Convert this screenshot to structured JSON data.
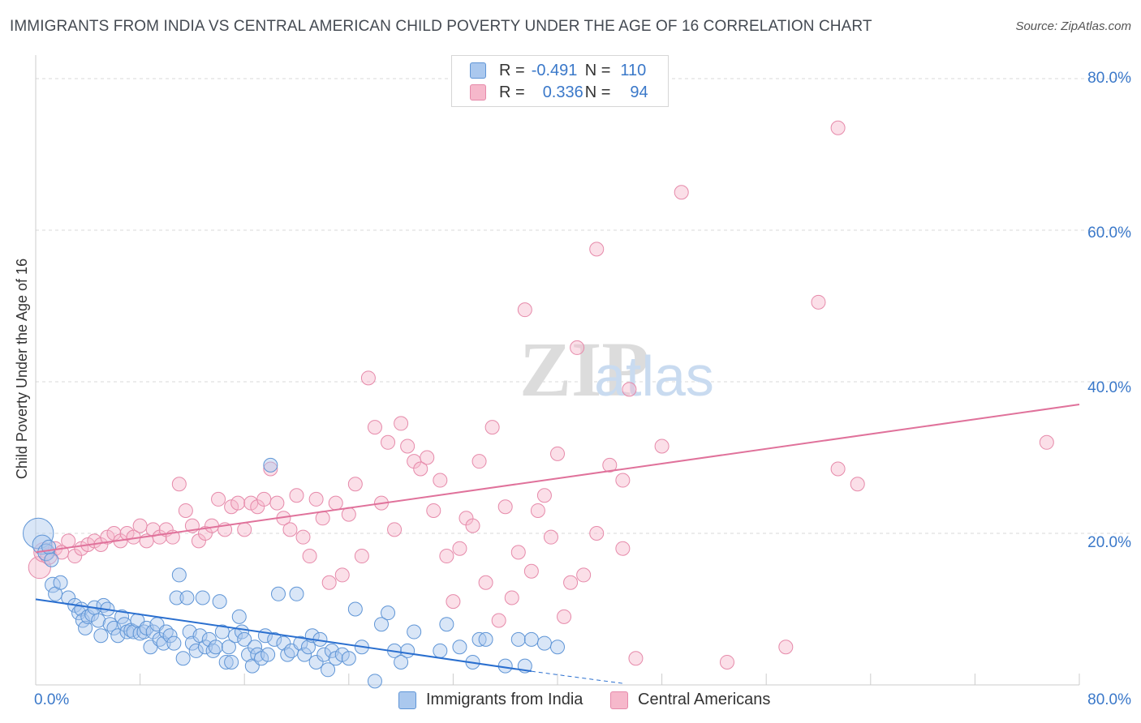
{
  "header": {
    "title": "IMMIGRANTS FROM INDIA VS CENTRAL AMERICAN CHILD POVERTY UNDER THE AGE OF 16 CORRELATION CHART",
    "source": "Source: ZipAtlas.com"
  },
  "legend": {
    "r_label": "R =",
    "n_label": "N =",
    "rows": [
      {
        "r": "-0.491",
        "n": "110"
      },
      {
        "r": "0.336",
        "n": "94"
      }
    ]
  },
  "bottom_legend": [
    "Immigrants from India",
    "Central Americans"
  ],
  "colors": {
    "india_fill": "#aac8ee",
    "india_stroke": "#5f95d6",
    "india_line": "#2a6fcf",
    "ca_fill": "#f6b8cb",
    "ca_stroke": "#e68aaa",
    "ca_line": "#e0729b",
    "grid": "#d9d9d9",
    "tick_text": "#3a78c9"
  },
  "chart_data": {
    "type": "scatter",
    "xlabel": "",
    "ylabel": "Child Poverty Under the Age of 16",
    "xlim": [
      0,
      80
    ],
    "ylim": [
      0,
      80
    ],
    "x_tick_labels": [
      "0.0%",
      "80.0%"
    ],
    "y_tick_labels": [
      "20.0%",
      "40.0%",
      "60.0%",
      "80.0%"
    ],
    "y_ticks": [
      20,
      40,
      60,
      80
    ],
    "grid": true,
    "watermark": "ZIPatlas",
    "series": [
      {
        "name": "Immigrants from India",
        "r": -0.491,
        "n": 110,
        "trend": {
          "x": [
            0,
            38
          ],
          "y": [
            11.3,
            1.8
          ],
          "dashed_to": [
            45,
            0.2
          ]
        },
        "points": [
          [
            0.2,
            20.0,
            2.2
          ],
          [
            0.5,
            18.5,
            1.4
          ],
          [
            0.8,
            17.5,
            1.2
          ],
          [
            1.0,
            18.2,
            1.0
          ],
          [
            1.2,
            16.5,
            1.0
          ],
          [
            1.3,
            13.2,
            1.1
          ],
          [
            1.5,
            12.0,
            1.0
          ],
          [
            1.9,
            13.5,
            1.0
          ],
          [
            2.5,
            11.5,
            1.0
          ],
          [
            3.0,
            10.5,
            1.0
          ],
          [
            3.3,
            9.5,
            1.0
          ],
          [
            3.5,
            10.0,
            1.0
          ],
          [
            3.6,
            8.5,
            1.0
          ],
          [
            3.8,
            7.5,
            1.0
          ],
          [
            4.0,
            9.0,
            1.0
          ],
          [
            4.3,
            9.3,
            1.0
          ],
          [
            4.5,
            10.2,
            1.0
          ],
          [
            4.8,
            8.5,
            1.0
          ],
          [
            5.0,
            6.5,
            1.0
          ],
          [
            5.2,
            10.5,
            1.0
          ],
          [
            5.5,
            10.0,
            1.0
          ],
          [
            5.7,
            8.0,
            1.0
          ],
          [
            6.0,
            7.5,
            1.0
          ],
          [
            6.3,
            6.5,
            1.0
          ],
          [
            6.6,
            9.0,
            1.0
          ],
          [
            6.8,
            8.0,
            1.0
          ],
          [
            7.0,
            7.0,
            1.0
          ],
          [
            7.3,
            7.2,
            1.0
          ],
          [
            7.5,
            7.0,
            1.0
          ],
          [
            7.8,
            8.5,
            1.0
          ],
          [
            8.0,
            6.8,
            1.0
          ],
          [
            8.3,
            7.0,
            1.0
          ],
          [
            8.5,
            7.5,
            1.0
          ],
          [
            8.8,
            5.0,
            1.0
          ],
          [
            9.0,
            7.0,
            1.0
          ],
          [
            9.3,
            8.0,
            1.0
          ],
          [
            9.5,
            6.0,
            1.0
          ],
          [
            9.8,
            5.5,
            1.0
          ],
          [
            10.0,
            7.0,
            1.0
          ],
          [
            10.3,
            6.5,
            1.0
          ],
          [
            10.6,
            5.5,
            1.0
          ],
          [
            10.8,
            11.5,
            1.0
          ],
          [
            11.0,
            14.5,
            1.0
          ],
          [
            11.3,
            3.5,
            1.0
          ],
          [
            11.6,
            11.5,
            1.0
          ],
          [
            11.8,
            7.0,
            1.0
          ],
          [
            12.0,
            5.5,
            1.0
          ],
          [
            12.3,
            4.5,
            1.0
          ],
          [
            12.6,
            6.5,
            1.0
          ],
          [
            12.8,
            11.5,
            1.0
          ],
          [
            13.0,
            5.0,
            1.0
          ],
          [
            13.3,
            6.0,
            1.0
          ],
          [
            13.6,
            4.5,
            1.0
          ],
          [
            13.8,
            5.0,
            1.0
          ],
          [
            14.1,
            11.0,
            1.0
          ],
          [
            14.3,
            7.0,
            1.0
          ],
          [
            14.6,
            3.0,
            1.0
          ],
          [
            14.8,
            5.0,
            1.0
          ],
          [
            15.0,
            3.0,
            1.0
          ],
          [
            15.3,
            6.5,
            1.0
          ],
          [
            15.6,
            9.0,
            1.0
          ],
          [
            15.8,
            7.0,
            1.0
          ],
          [
            16.0,
            6.0,
            1.0
          ],
          [
            16.3,
            4.0,
            1.0
          ],
          [
            16.6,
            2.5,
            1.0
          ],
          [
            16.8,
            5.0,
            1.0
          ],
          [
            17.0,
            4.0,
            1.0
          ],
          [
            17.3,
            3.5,
            1.0
          ],
          [
            17.6,
            6.5,
            1.0
          ],
          [
            17.8,
            4.0,
            1.0
          ],
          [
            18.0,
            29.0,
            1.0
          ],
          [
            18.3,
            6.0,
            1.0
          ],
          [
            18.6,
            12.0,
            1.0
          ],
          [
            19.0,
            5.5,
            1.0
          ],
          [
            19.3,
            4.0,
            1.0
          ],
          [
            19.6,
            4.5,
            1.0
          ],
          [
            20.0,
            12.0,
            1.0
          ],
          [
            20.3,
            5.5,
            1.0
          ],
          [
            20.6,
            4.0,
            1.0
          ],
          [
            20.9,
            5.0,
            1.0
          ],
          [
            21.2,
            6.5,
            1.0
          ],
          [
            21.5,
            3.0,
            1.0
          ],
          [
            21.8,
            6.0,
            1.0
          ],
          [
            22.1,
            4.0,
            1.0
          ],
          [
            22.4,
            2.0,
            1.0
          ],
          [
            22.7,
            4.5,
            1.0
          ],
          [
            23.0,
            3.5,
            1.0
          ],
          [
            23.5,
            4.0,
            1.0
          ],
          [
            24.0,
            3.5,
            1.0
          ],
          [
            24.5,
            10.0,
            1.0
          ],
          [
            25.0,
            5.0,
            1.0
          ],
          [
            26.0,
            0.5,
            1.0
          ],
          [
            26.5,
            8.0,
            1.0
          ],
          [
            27.0,
            9.5,
            1.0
          ],
          [
            27.5,
            4.5,
            1.0
          ],
          [
            28.0,
            3.0,
            1.0
          ],
          [
            28.5,
            4.5,
            1.0
          ],
          [
            29.0,
            7.0,
            1.0
          ],
          [
            31.0,
            4.5,
            1.0
          ],
          [
            31.5,
            8.0,
            1.0
          ],
          [
            32.5,
            5.0,
            1.0
          ],
          [
            33.5,
            3.0,
            1.0
          ],
          [
            34.0,
            6.0,
            1.0
          ],
          [
            34.5,
            6.0,
            1.0
          ],
          [
            36.0,
            2.5,
            1.0
          ],
          [
            37.0,
            6.0,
            1.0
          ],
          [
            37.5,
            2.5,
            1.0
          ],
          [
            38.0,
            6.0,
            1.0
          ],
          [
            39.0,
            5.5,
            1.0
          ],
          [
            40.0,
            5.0,
            1.0
          ]
        ]
      },
      {
        "name": "Central Americans",
        "r": 0.336,
        "n": 94,
        "trend": {
          "x": [
            0,
            80
          ],
          "y": [
            17.5,
            37.0
          ]
        },
        "points": [
          [
            0.3,
            15.5,
            1.6
          ],
          [
            0.6,
            17.5,
            1.4
          ],
          [
            1.0,
            17.0,
            1.2
          ],
          [
            1.5,
            18.0,
            1.0
          ],
          [
            2.0,
            17.5,
            1.0
          ],
          [
            2.5,
            19.0,
            1.0
          ],
          [
            3.0,
            17.0,
            1.0
          ],
          [
            3.5,
            18.0,
            1.0
          ],
          [
            4.0,
            18.5,
            1.0
          ],
          [
            4.5,
            19.0,
            1.0
          ],
          [
            5.0,
            18.5,
            1.0
          ],
          [
            5.5,
            19.5,
            1.0
          ],
          [
            6.0,
            20.0,
            1.0
          ],
          [
            6.5,
            19.0,
            1.0
          ],
          [
            7.0,
            20.0,
            1.0
          ],
          [
            7.5,
            19.5,
            1.0
          ],
          [
            8.0,
            21.0,
            1.0
          ],
          [
            8.5,
            19.0,
            1.0
          ],
          [
            9.0,
            20.5,
            1.0
          ],
          [
            9.5,
            19.5,
            1.0
          ],
          [
            10.0,
            20.5,
            1.0
          ],
          [
            10.5,
            19.5,
            1.0
          ],
          [
            11.0,
            26.5,
            1.0
          ],
          [
            11.5,
            23.0,
            1.0
          ],
          [
            12.0,
            21.0,
            1.0
          ],
          [
            12.5,
            19.0,
            1.0
          ],
          [
            13.0,
            20.0,
            1.0
          ],
          [
            13.5,
            21.0,
            1.0
          ],
          [
            14.0,
            24.5,
            1.0
          ],
          [
            14.5,
            20.5,
            1.0
          ],
          [
            15.0,
            23.5,
            1.0
          ],
          [
            15.5,
            24.0,
            1.0
          ],
          [
            16.0,
            20.5,
            1.0
          ],
          [
            16.5,
            24.0,
            1.0
          ],
          [
            17.0,
            23.5,
            1.0
          ],
          [
            17.5,
            24.5,
            1.0
          ],
          [
            18.0,
            28.5,
            1.0
          ],
          [
            18.5,
            24.0,
            1.0
          ],
          [
            19.0,
            22.0,
            1.0
          ],
          [
            19.5,
            20.5,
            1.0
          ],
          [
            20.0,
            25.0,
            1.0
          ],
          [
            20.5,
            19.5,
            1.0
          ],
          [
            21.0,
            17.0,
            1.0
          ],
          [
            21.5,
            24.5,
            1.0
          ],
          [
            22.0,
            22.0,
            1.0
          ],
          [
            22.5,
            13.5,
            1.0
          ],
          [
            23.0,
            24.0,
            1.0
          ],
          [
            23.5,
            14.5,
            1.0
          ],
          [
            24.0,
            22.5,
            1.0
          ],
          [
            24.5,
            26.5,
            1.0
          ],
          [
            25.0,
            17.0,
            1.0
          ],
          [
            25.5,
            40.5,
            1.0
          ],
          [
            26.0,
            34.0,
            1.0
          ],
          [
            26.5,
            24.0,
            1.0
          ],
          [
            27.0,
            32.0,
            1.0
          ],
          [
            27.5,
            20.5,
            1.0
          ],
          [
            28.0,
            34.5,
            1.0
          ],
          [
            28.5,
            31.5,
            1.0
          ],
          [
            29.0,
            29.5,
            1.0
          ],
          [
            29.5,
            28.5,
            1.0
          ],
          [
            30.0,
            30.0,
            1.0
          ],
          [
            30.5,
            23.0,
            1.0
          ],
          [
            31.0,
            27.0,
            1.0
          ],
          [
            31.5,
            17.0,
            1.0
          ],
          [
            32.0,
            11.0,
            1.0
          ],
          [
            32.5,
            18.0,
            1.0
          ],
          [
            33.0,
            22.0,
            1.0
          ],
          [
            33.5,
            21.0,
            1.0
          ],
          [
            34.0,
            29.5,
            1.0
          ],
          [
            34.5,
            13.5,
            1.0
          ],
          [
            35.0,
            34.0,
            1.0
          ],
          [
            35.5,
            8.5,
            1.0
          ],
          [
            36.0,
            23.5,
            1.0
          ],
          [
            36.5,
            11.5,
            1.0
          ],
          [
            37.0,
            17.5,
            1.0
          ],
          [
            37.5,
            49.5,
            1.0
          ],
          [
            38.0,
            15.0,
            1.0
          ],
          [
            38.5,
            23.0,
            1.0
          ],
          [
            39.0,
            25.0,
            1.0
          ],
          [
            39.5,
            19.5,
            1.0
          ],
          [
            40.0,
            30.5,
            1.0
          ],
          [
            40.5,
            9.0,
            1.0
          ],
          [
            41.0,
            13.5,
            1.0
          ],
          [
            41.5,
            44.5,
            1.0
          ],
          [
            42.0,
            14.5,
            1.0
          ],
          [
            43.0,
            20.0,
            1.0
          ],
          [
            44.0,
            29.0,
            1.0
          ],
          [
            45.0,
            27.0,
            1.0
          ],
          [
            48.0,
            31.5,
            1.0
          ],
          [
            57.5,
            5.0,
            1.0
          ],
          [
            60.0,
            50.5,
            1.0
          ],
          [
            63.0,
            26.5,
            1.0
          ],
          [
            77.5,
            32.0,
            1.0
          ],
          [
            46.0,
            3.5,
            1.0
          ]
        ]
      }
    ],
    "extra_points_ca": [
      [
        43.0,
        57.5
      ],
      [
        49.5,
        65.0
      ],
      [
        61.5,
        73.5
      ],
      [
        45.5,
        39.0
      ],
      [
        53.0,
        3.0
      ],
      [
        61.5,
        28.5
      ],
      [
        45.0,
        18.0
      ]
    ]
  }
}
